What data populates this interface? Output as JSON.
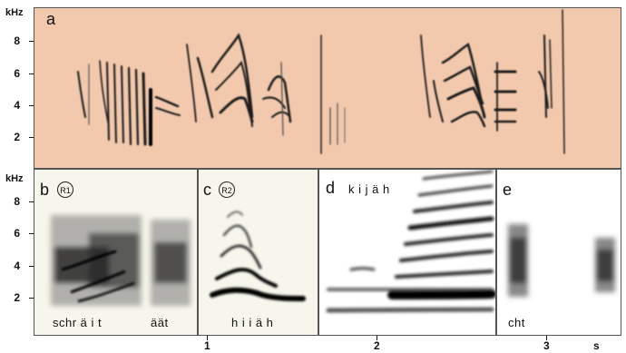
{
  "axis": {
    "y_unit": "kHz",
    "y_ticks": [
      "8",
      "6",
      "4",
      "2"
    ],
    "x_unit": "s",
    "x_ticks": [
      "1",
      "2",
      "3"
    ]
  },
  "panels": {
    "a": {
      "letter": "a"
    },
    "b": {
      "letter": "b",
      "badge": "R1",
      "syllables": [
        "schr ä i t",
        "äät"
      ]
    },
    "c": {
      "letter": "c",
      "badge": "R2",
      "syllables": [
        "h i i ä h"
      ]
    },
    "d": {
      "letter": "d",
      "title": "k i j ä h"
    },
    "e": {
      "letter": "e",
      "syllables": [
        "cht"
      ]
    }
  },
  "colors": {
    "panel_a_background": "#f2c9ad",
    "panel_bc_background": "#f7f6ec",
    "panel_de_background": "#ffffff",
    "ink": "#111111"
  }
}
